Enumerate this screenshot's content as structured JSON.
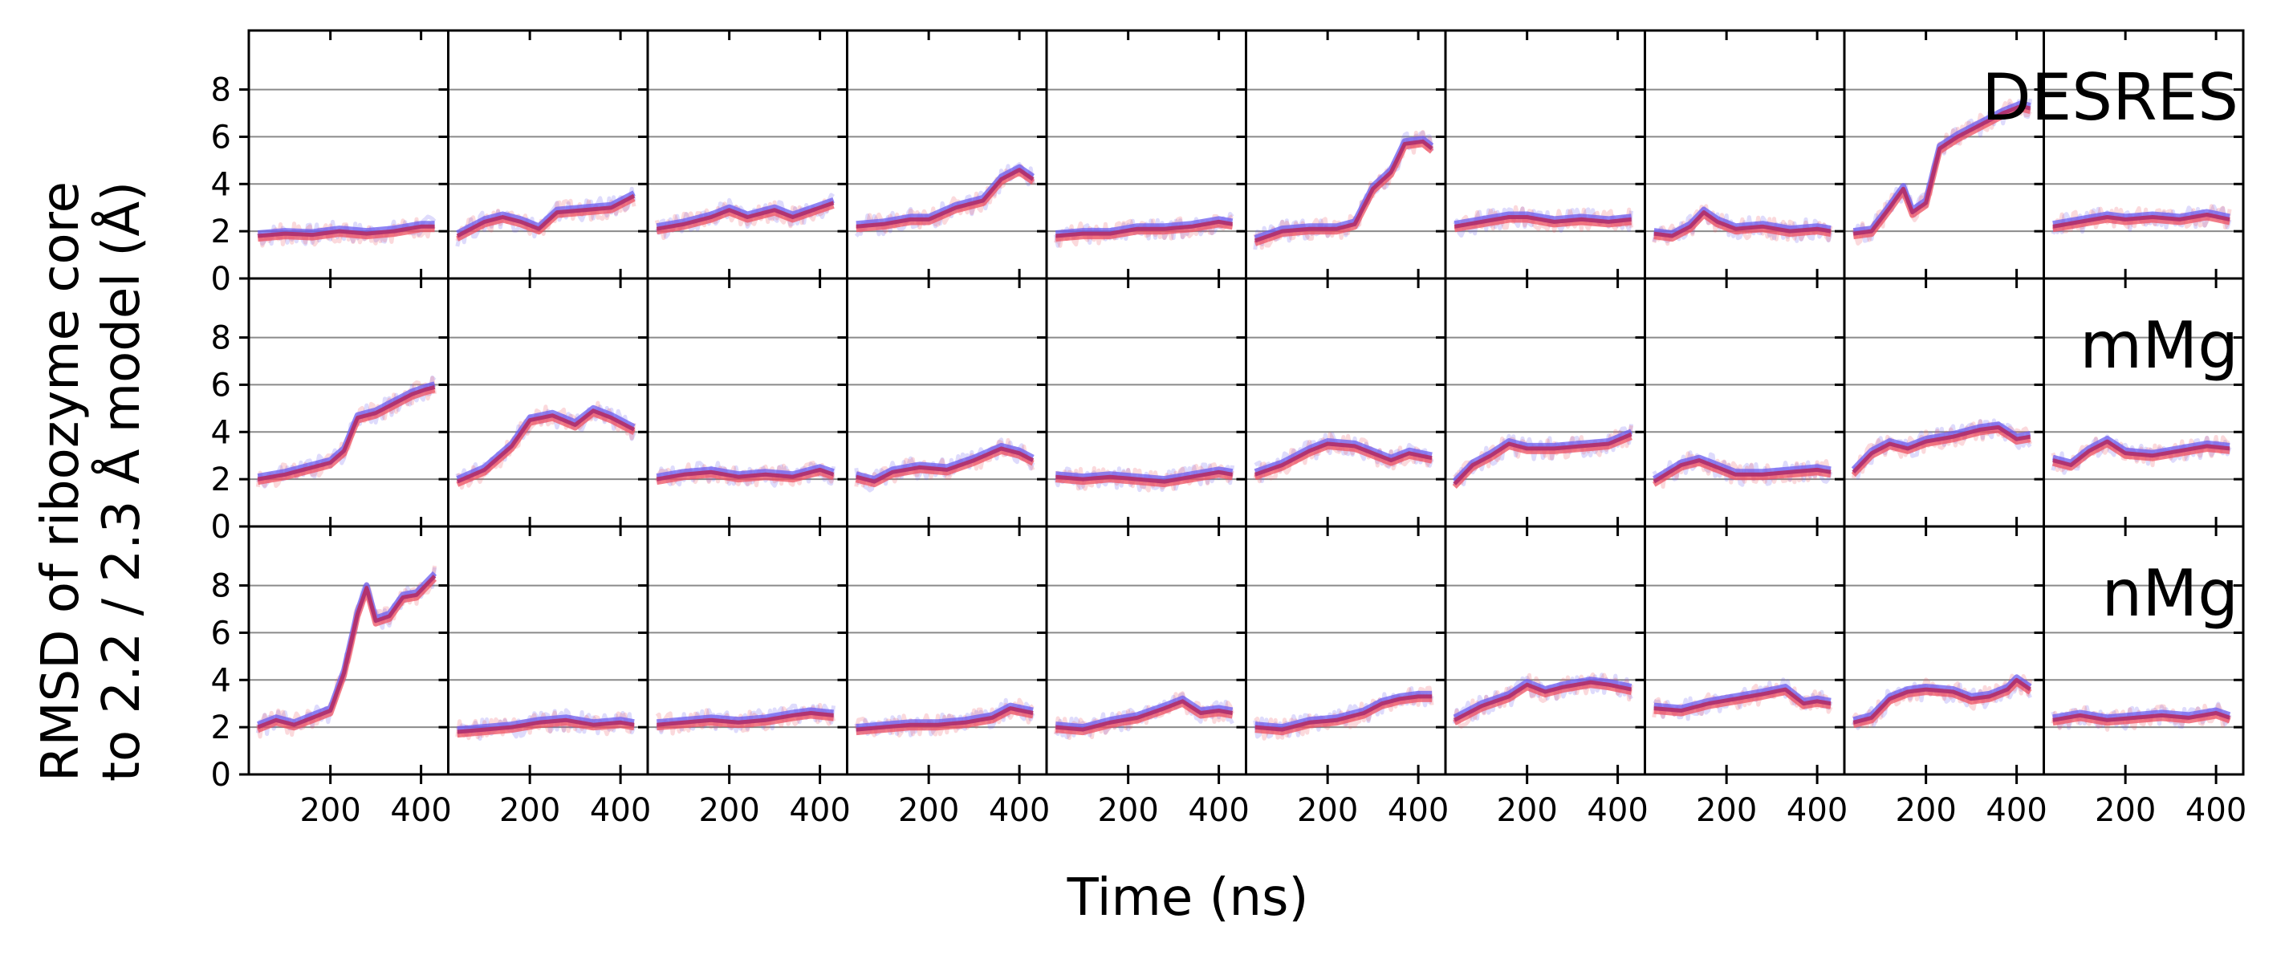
{
  "chart_data": {
    "type": "line",
    "layout": "small-multiples",
    "xlabel": "Time (ns)",
    "ylabel_lines": [
      "RMSD of ribozyme core",
      "to 2.2 / 2.3 Å model (Å)"
    ],
    "x_ticks": [
      200,
      400
    ],
    "y_ticks": [
      0,
      2,
      4,
      6,
      8
    ],
    "xlim": [
      20,
      460
    ],
    "ylim": [
      0,
      10.5
    ],
    "grid": "horizontal",
    "colors": {
      "blue": "#6a5cf0",
      "red": "#ee5060",
      "overlap": "#b0306e"
    },
    "rows": [
      {
        "label": "DESRES",
        "panels": [
          [
            [
              40,
              1.8
            ],
            [
              100,
              1.9
            ],
            [
              160,
              1.85
            ],
            [
              220,
              2.0
            ],
            [
              280,
              1.9
            ],
            [
              340,
              2.0
            ],
            [
              400,
              2.2
            ],
            [
              430,
              2.2
            ]
          ],
          [
            [
              40,
              1.8
            ],
            [
              100,
              2.4
            ],
            [
              140,
              2.6
            ],
            [
              180,
              2.4
            ],
            [
              220,
              2.1
            ],
            [
              260,
              2.8
            ],
            [
              320,
              2.9
            ],
            [
              380,
              3.0
            ],
            [
              430,
              3.5
            ]
          ],
          [
            [
              40,
              2.1
            ],
            [
              100,
              2.3
            ],
            [
              160,
              2.6
            ],
            [
              200,
              2.9
            ],
            [
              240,
              2.6
            ],
            [
              300,
              2.9
            ],
            [
              340,
              2.6
            ],
            [
              400,
              3.0
            ],
            [
              430,
              3.2
            ]
          ],
          [
            [
              40,
              2.2
            ],
            [
              100,
              2.3
            ],
            [
              160,
              2.5
            ],
            [
              200,
              2.5
            ],
            [
              260,
              3.0
            ],
            [
              320,
              3.3
            ],
            [
              360,
              4.2
            ],
            [
              400,
              4.6
            ],
            [
              430,
              4.2
            ]
          ],
          [
            [
              40,
              1.8
            ],
            [
              100,
              1.9
            ],
            [
              160,
              1.9
            ],
            [
              220,
              2.1
            ],
            [
              280,
              2.1
            ],
            [
              340,
              2.2
            ],
            [
              400,
              2.4
            ],
            [
              430,
              2.3
            ]
          ],
          [
            [
              40,
              1.6
            ],
            [
              100,
              2.0
            ],
            [
              160,
              2.1
            ],
            [
              220,
              2.1
            ],
            [
              260,
              2.3
            ],
            [
              300,
              3.8
            ],
            [
              340,
              4.5
            ],
            [
              370,
              5.7
            ],
            [
              410,
              5.8
            ],
            [
              430,
              5.5
            ]
          ],
          [
            [
              40,
              2.2
            ],
            [
              100,
              2.4
            ],
            [
              160,
              2.6
            ],
            [
              200,
              2.6
            ],
            [
              260,
              2.4
            ],
            [
              320,
              2.5
            ],
            [
              380,
              2.4
            ],
            [
              430,
              2.5
            ]
          ],
          [
            [
              40,
              1.9
            ],
            [
              80,
              1.8
            ],
            [
              120,
              2.2
            ],
            [
              150,
              2.8
            ],
            [
              180,
              2.4
            ],
            [
              220,
              2.1
            ],
            [
              280,
              2.2
            ],
            [
              340,
              2.0
            ],
            [
              400,
              2.1
            ],
            [
              430,
              2.0
            ]
          ],
          [
            [
              40,
              1.9
            ],
            [
              80,
              2.0
            ],
            [
              120,
              3.0
            ],
            [
              150,
              3.8
            ],
            [
              170,
              2.8
            ],
            [
              200,
              3.2
            ],
            [
              230,
              5.5
            ],
            [
              270,
              6.0
            ],
            [
              320,
              6.5
            ],
            [
              370,
              7.0
            ],
            [
              410,
              7.3
            ],
            [
              430,
              7.2
            ]
          ],
          [
            [
              40,
              2.2
            ],
            [
              100,
              2.4
            ],
            [
              160,
              2.6
            ],
            [
              200,
              2.5
            ],
            [
              260,
              2.6
            ],
            [
              320,
              2.5
            ],
            [
              380,
              2.7
            ],
            [
              430,
              2.5
            ]
          ]
        ]
      },
      {
        "label": "mMg",
        "panels": [
          [
            [
              40,
              2.0
            ],
            [
              100,
              2.2
            ],
            [
              160,
              2.5
            ],
            [
              200,
              2.7
            ],
            [
              230,
              3.2
            ],
            [
              260,
              4.6
            ],
            [
              300,
              4.8
            ],
            [
              340,
              5.2
            ],
            [
              380,
              5.6
            ],
            [
              410,
              5.8
            ],
            [
              430,
              5.9
            ]
          ],
          [
            [
              40,
              1.9
            ],
            [
              100,
              2.4
            ],
            [
              160,
              3.4
            ],
            [
              200,
              4.5
            ],
            [
              250,
              4.7
            ],
            [
              300,
              4.3
            ],
            [
              340,
              4.9
            ],
            [
              380,
              4.6
            ],
            [
              430,
              4.1
            ]
          ],
          [
            [
              40,
              2.0
            ],
            [
              100,
              2.2
            ],
            [
              160,
              2.3
            ],
            [
              220,
              2.1
            ],
            [
              280,
              2.2
            ],
            [
              340,
              2.1
            ],
            [
              400,
              2.4
            ],
            [
              430,
              2.2
            ]
          ],
          [
            [
              40,
              2.1
            ],
            [
              80,
              1.9
            ],
            [
              120,
              2.3
            ],
            [
              180,
              2.5
            ],
            [
              240,
              2.4
            ],
            [
              300,
              2.8
            ],
            [
              360,
              3.3
            ],
            [
              400,
              3.1
            ],
            [
              430,
              2.8
            ]
          ],
          [
            [
              40,
              2.1
            ],
            [
              100,
              2.0
            ],
            [
              160,
              2.1
            ],
            [
              220,
              2.0
            ],
            [
              280,
              1.9
            ],
            [
              340,
              2.1
            ],
            [
              400,
              2.3
            ],
            [
              430,
              2.2
            ]
          ],
          [
            [
              40,
              2.2
            ],
            [
              100,
              2.6
            ],
            [
              160,
              3.2
            ],
            [
              200,
              3.5
            ],
            [
              260,
              3.4
            ],
            [
              300,
              3.1
            ],
            [
              340,
              2.8
            ],
            [
              380,
              3.1
            ],
            [
              430,
              2.9
            ]
          ],
          [
            [
              40,
              1.8
            ],
            [
              80,
              2.6
            ],
            [
              120,
              3.0
            ],
            [
              160,
              3.5
            ],
            [
              200,
              3.3
            ],
            [
              260,
              3.3
            ],
            [
              320,
              3.4
            ],
            [
              380,
              3.5
            ],
            [
              430,
              3.9
            ]
          ],
          [
            [
              40,
              1.9
            ],
            [
              100,
              2.6
            ],
            [
              140,
              2.8
            ],
            [
              180,
              2.5
            ],
            [
              220,
              2.2
            ],
            [
              280,
              2.2
            ],
            [
              340,
              2.3
            ],
            [
              400,
              2.4
            ],
            [
              430,
              2.3
            ]
          ],
          [
            [
              40,
              2.3
            ],
            [
              80,
              3.1
            ],
            [
              120,
              3.5
            ],
            [
              160,
              3.3
            ],
            [
              200,
              3.6
            ],
            [
              260,
              3.8
            ],
            [
              320,
              4.1
            ],
            [
              360,
              4.2
            ],
            [
              400,
              3.7
            ],
            [
              430,
              3.8
            ]
          ],
          [
            [
              40,
              2.8
            ],
            [
              80,
              2.6
            ],
            [
              120,
              3.2
            ],
            [
              160,
              3.6
            ],
            [
              200,
              3.1
            ],
            [
              260,
              3.0
            ],
            [
              320,
              3.2
            ],
            [
              380,
              3.4
            ],
            [
              430,
              3.3
            ]
          ]
        ]
      },
      {
        "label": "nMg",
        "panels": [
          [
            [
              40,
              2.0
            ],
            [
              80,
              2.3
            ],
            [
              120,
              2.1
            ],
            [
              160,
              2.4
            ],
            [
              200,
              2.7
            ],
            [
              230,
              4.3
            ],
            [
              260,
              6.8
            ],
            [
              280,
              7.9
            ],
            [
              300,
              6.5
            ],
            [
              330,
              6.7
            ],
            [
              360,
              7.5
            ],
            [
              390,
              7.6
            ],
            [
              420,
              8.2
            ],
            [
              430,
              8.4
            ]
          ],
          [
            [
              40,
              1.8
            ],
            [
              100,
              1.9
            ],
            [
              160,
              2.0
            ],
            [
              220,
              2.2
            ],
            [
              280,
              2.3
            ],
            [
              340,
              2.1
            ],
            [
              400,
              2.2
            ],
            [
              430,
              2.1
            ]
          ],
          [
            [
              40,
              2.1
            ],
            [
              100,
              2.2
            ],
            [
              160,
              2.3
            ],
            [
              220,
              2.2
            ],
            [
              280,
              2.3
            ],
            [
              340,
              2.5
            ],
            [
              380,
              2.6
            ],
            [
              430,
              2.5
            ]
          ],
          [
            [
              40,
              1.9
            ],
            [
              100,
              2.0
            ],
            [
              160,
              2.1
            ],
            [
              220,
              2.1
            ],
            [
              280,
              2.2
            ],
            [
              340,
              2.4
            ],
            [
              380,
              2.8
            ],
            [
              430,
              2.6
            ]
          ],
          [
            [
              40,
              2.0
            ],
            [
              100,
              1.9
            ],
            [
              160,
              2.2
            ],
            [
              220,
              2.4
            ],
            [
              280,
              2.8
            ],
            [
              320,
              3.1
            ],
            [
              360,
              2.6
            ],
            [
              400,
              2.7
            ],
            [
              430,
              2.6
            ]
          ],
          [
            [
              40,
              2.0
            ],
            [
              100,
              1.9
            ],
            [
              160,
              2.2
            ],
            [
              220,
              2.3
            ],
            [
              280,
              2.6
            ],
            [
              320,
              3.0
            ],
            [
              360,
              3.2
            ],
            [
              400,
              3.3
            ],
            [
              430,
              3.3
            ]
          ],
          [
            [
              40,
              2.3
            ],
            [
              100,
              2.9
            ],
            [
              160,
              3.3
            ],
            [
              200,
              3.8
            ],
            [
              240,
              3.5
            ],
            [
              280,
              3.7
            ],
            [
              340,
              3.9
            ],
            [
              380,
              3.8
            ],
            [
              430,
              3.6
            ]
          ],
          [
            [
              40,
              2.8
            ],
            [
              100,
              2.7
            ],
            [
              160,
              3.0
            ],
            [
              220,
              3.2
            ],
            [
              280,
              3.4
            ],
            [
              330,
              3.6
            ],
            [
              370,
              3.0
            ],
            [
              400,
              3.1
            ],
            [
              430,
              3.0
            ]
          ],
          [
            [
              40,
              2.2
            ],
            [
              80,
              2.4
            ],
            [
              120,
              3.2
            ],
            [
              160,
              3.5
            ],
            [
              200,
              3.6
            ],
            [
              260,
              3.5
            ],
            [
              300,
              3.2
            ],
            [
              340,
              3.3
            ],
            [
              380,
              3.6
            ],
            [
              400,
              4.0
            ],
            [
              430,
              3.6
            ]
          ],
          [
            [
              40,
              2.3
            ],
            [
              100,
              2.5
            ],
            [
              160,
              2.3
            ],
            [
              220,
              2.4
            ],
            [
              280,
              2.5
            ],
            [
              340,
              2.4
            ],
            [
              400,
              2.6
            ],
            [
              430,
              2.4
            ]
          ]
        ]
      }
    ]
  }
}
